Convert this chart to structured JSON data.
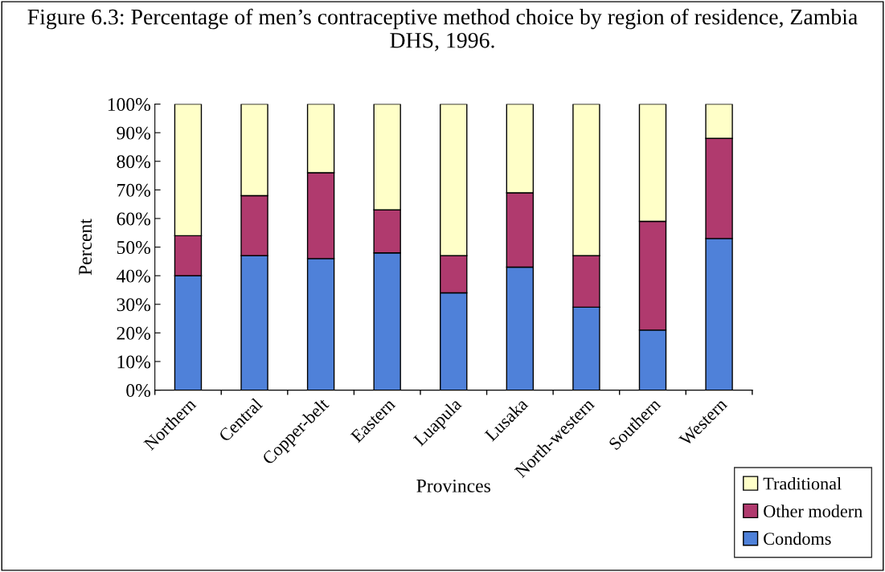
{
  "chart_data": {
    "type": "bar",
    "stacked": true,
    "title": "Figure 6.3: Percentage of men’s contraceptive method choice by region of residence, Zambia DHS, 1996.",
    "xlabel": "Provinces",
    "ylabel": "Percent",
    "categories": [
      "Northern",
      "Central",
      "Copper-belt",
      "Eastern",
      "Luapula",
      "Lusaka",
      "North-western",
      "Southern",
      "Western"
    ],
    "series": [
      {
        "name": "Condoms",
        "color": "#4f81d9",
        "values": [
          40,
          47,
          46,
          48,
          34,
          43,
          29,
          21,
          53
        ]
      },
      {
        "name": "Other modern",
        "color": "#b03a6e",
        "values": [
          14,
          21,
          30,
          15,
          13,
          26,
          18,
          38,
          35
        ]
      },
      {
        "name": "Traditional",
        "color": "#ffffc8",
        "values": [
          46,
          32,
          24,
          37,
          53,
          31,
          53,
          41,
          12
        ]
      }
    ],
    "ylim": [
      0,
      100
    ],
    "yticks": [
      {
        "value": 0,
        "label": "0%"
      },
      {
        "value": 10,
        "label": "10%"
      },
      {
        "value": 20,
        "label": "20%"
      },
      {
        "value": 30,
        "label": "30%"
      },
      {
        "value": 40,
        "label": "40%"
      },
      {
        "value": 50,
        "label": "50%"
      },
      {
        "value": 60,
        "label": "60%"
      },
      {
        "value": 70,
        "label": "70%"
      },
      {
        "value": 80,
        "label": "80%"
      },
      {
        "value": 90,
        "label": "90%"
      },
      {
        "value": 100,
        "label": "100%"
      }
    ],
    "grid": false,
    "legend": "bottom right"
  }
}
